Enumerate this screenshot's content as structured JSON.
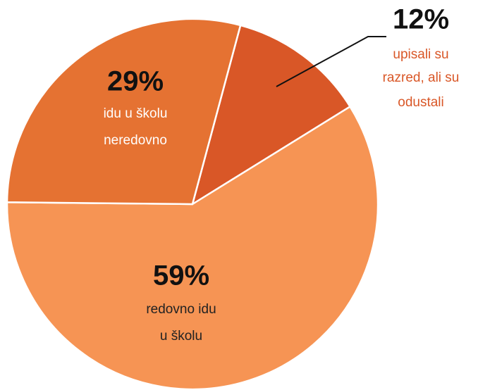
{
  "chart_data": {
    "type": "pie",
    "categories": [
      [
        "upisali su",
        "razred, ali su",
        "odustali"
      ],
      [
        "redovno idu",
        "u školu"
      ],
      [
        "idu u školu",
        "neredovno"
      ]
    ],
    "values": [
      12,
      59,
      29
    ],
    "value_labels": [
      "12%",
      "59%",
      "29%"
    ],
    "colors": [
      "#d95727",
      "#f69454",
      "#e57232"
    ]
  }
}
